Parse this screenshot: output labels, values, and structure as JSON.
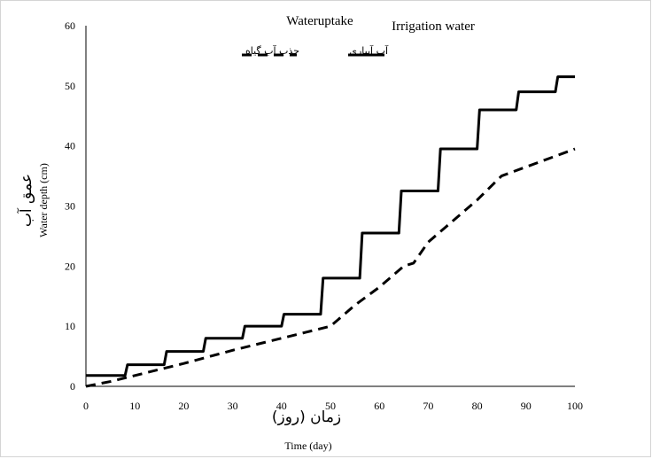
{
  "chart_data": {
    "type": "line",
    "legend_titles": [
      "Wateruptake",
      "Irrigation water"
    ],
    "legend_placement": "top-center",
    "series": [
      {
        "name": "آب آبیاری",
        "style": "solid",
        "color": "#000000",
        "x": [
          0,
          8,
          8.5,
          16,
          16.5,
          24,
          24.5,
          32,
          32.5,
          40,
          40.5,
          48,
          48.5,
          56,
          56.5,
          64,
          64.5,
          72,
          72.5,
          80,
          80.5,
          88,
          88.5,
          96,
          96.5,
          98,
          100
        ],
        "y": [
          1.8,
          1.8,
          3.6,
          3.6,
          5.8,
          5.8,
          8.0,
          8.0,
          10.0,
          10.0,
          12.0,
          12.0,
          18.0,
          18.0,
          25.5,
          25.5,
          32.5,
          32.5,
          39.5,
          39.5,
          46.0,
          46.0,
          49.0,
          49.0,
          51.5,
          51.5,
          51.5
        ]
      },
      {
        "name": "جذب آب گیاه",
        "style": "dashed",
        "color": "#000000",
        "x": [
          0,
          5,
          10,
          15,
          20,
          25,
          30,
          35,
          40,
          45,
          50,
          55,
          60,
          65,
          67,
          70,
          75,
          80,
          85,
          90,
          95,
          100
        ],
        "y": [
          0,
          0.8,
          1.8,
          2.8,
          3.8,
          4.9,
          6.0,
          7.0,
          8.0,
          9.0,
          10.0,
          13.5,
          16.5,
          20.0,
          20.5,
          24.0,
          27.5,
          31.0,
          35.0,
          36.5,
          38.0,
          39.5
        ]
      }
    ],
    "xlabel_fa": "زمان (روز)",
    "xlabel": "Time (day)",
    "ylabel_fa": "عمق آب",
    "ylabel": "Water depth (cm)",
    "xlim": [
      0,
      100
    ],
    "ylim": [
      0,
      60
    ],
    "xticks": [
      0,
      10,
      20,
      30,
      40,
      50,
      60,
      70,
      80,
      90,
      100
    ],
    "yticks": [
      0,
      10,
      20,
      30,
      40,
      50,
      60
    ],
    "grid": false
  }
}
